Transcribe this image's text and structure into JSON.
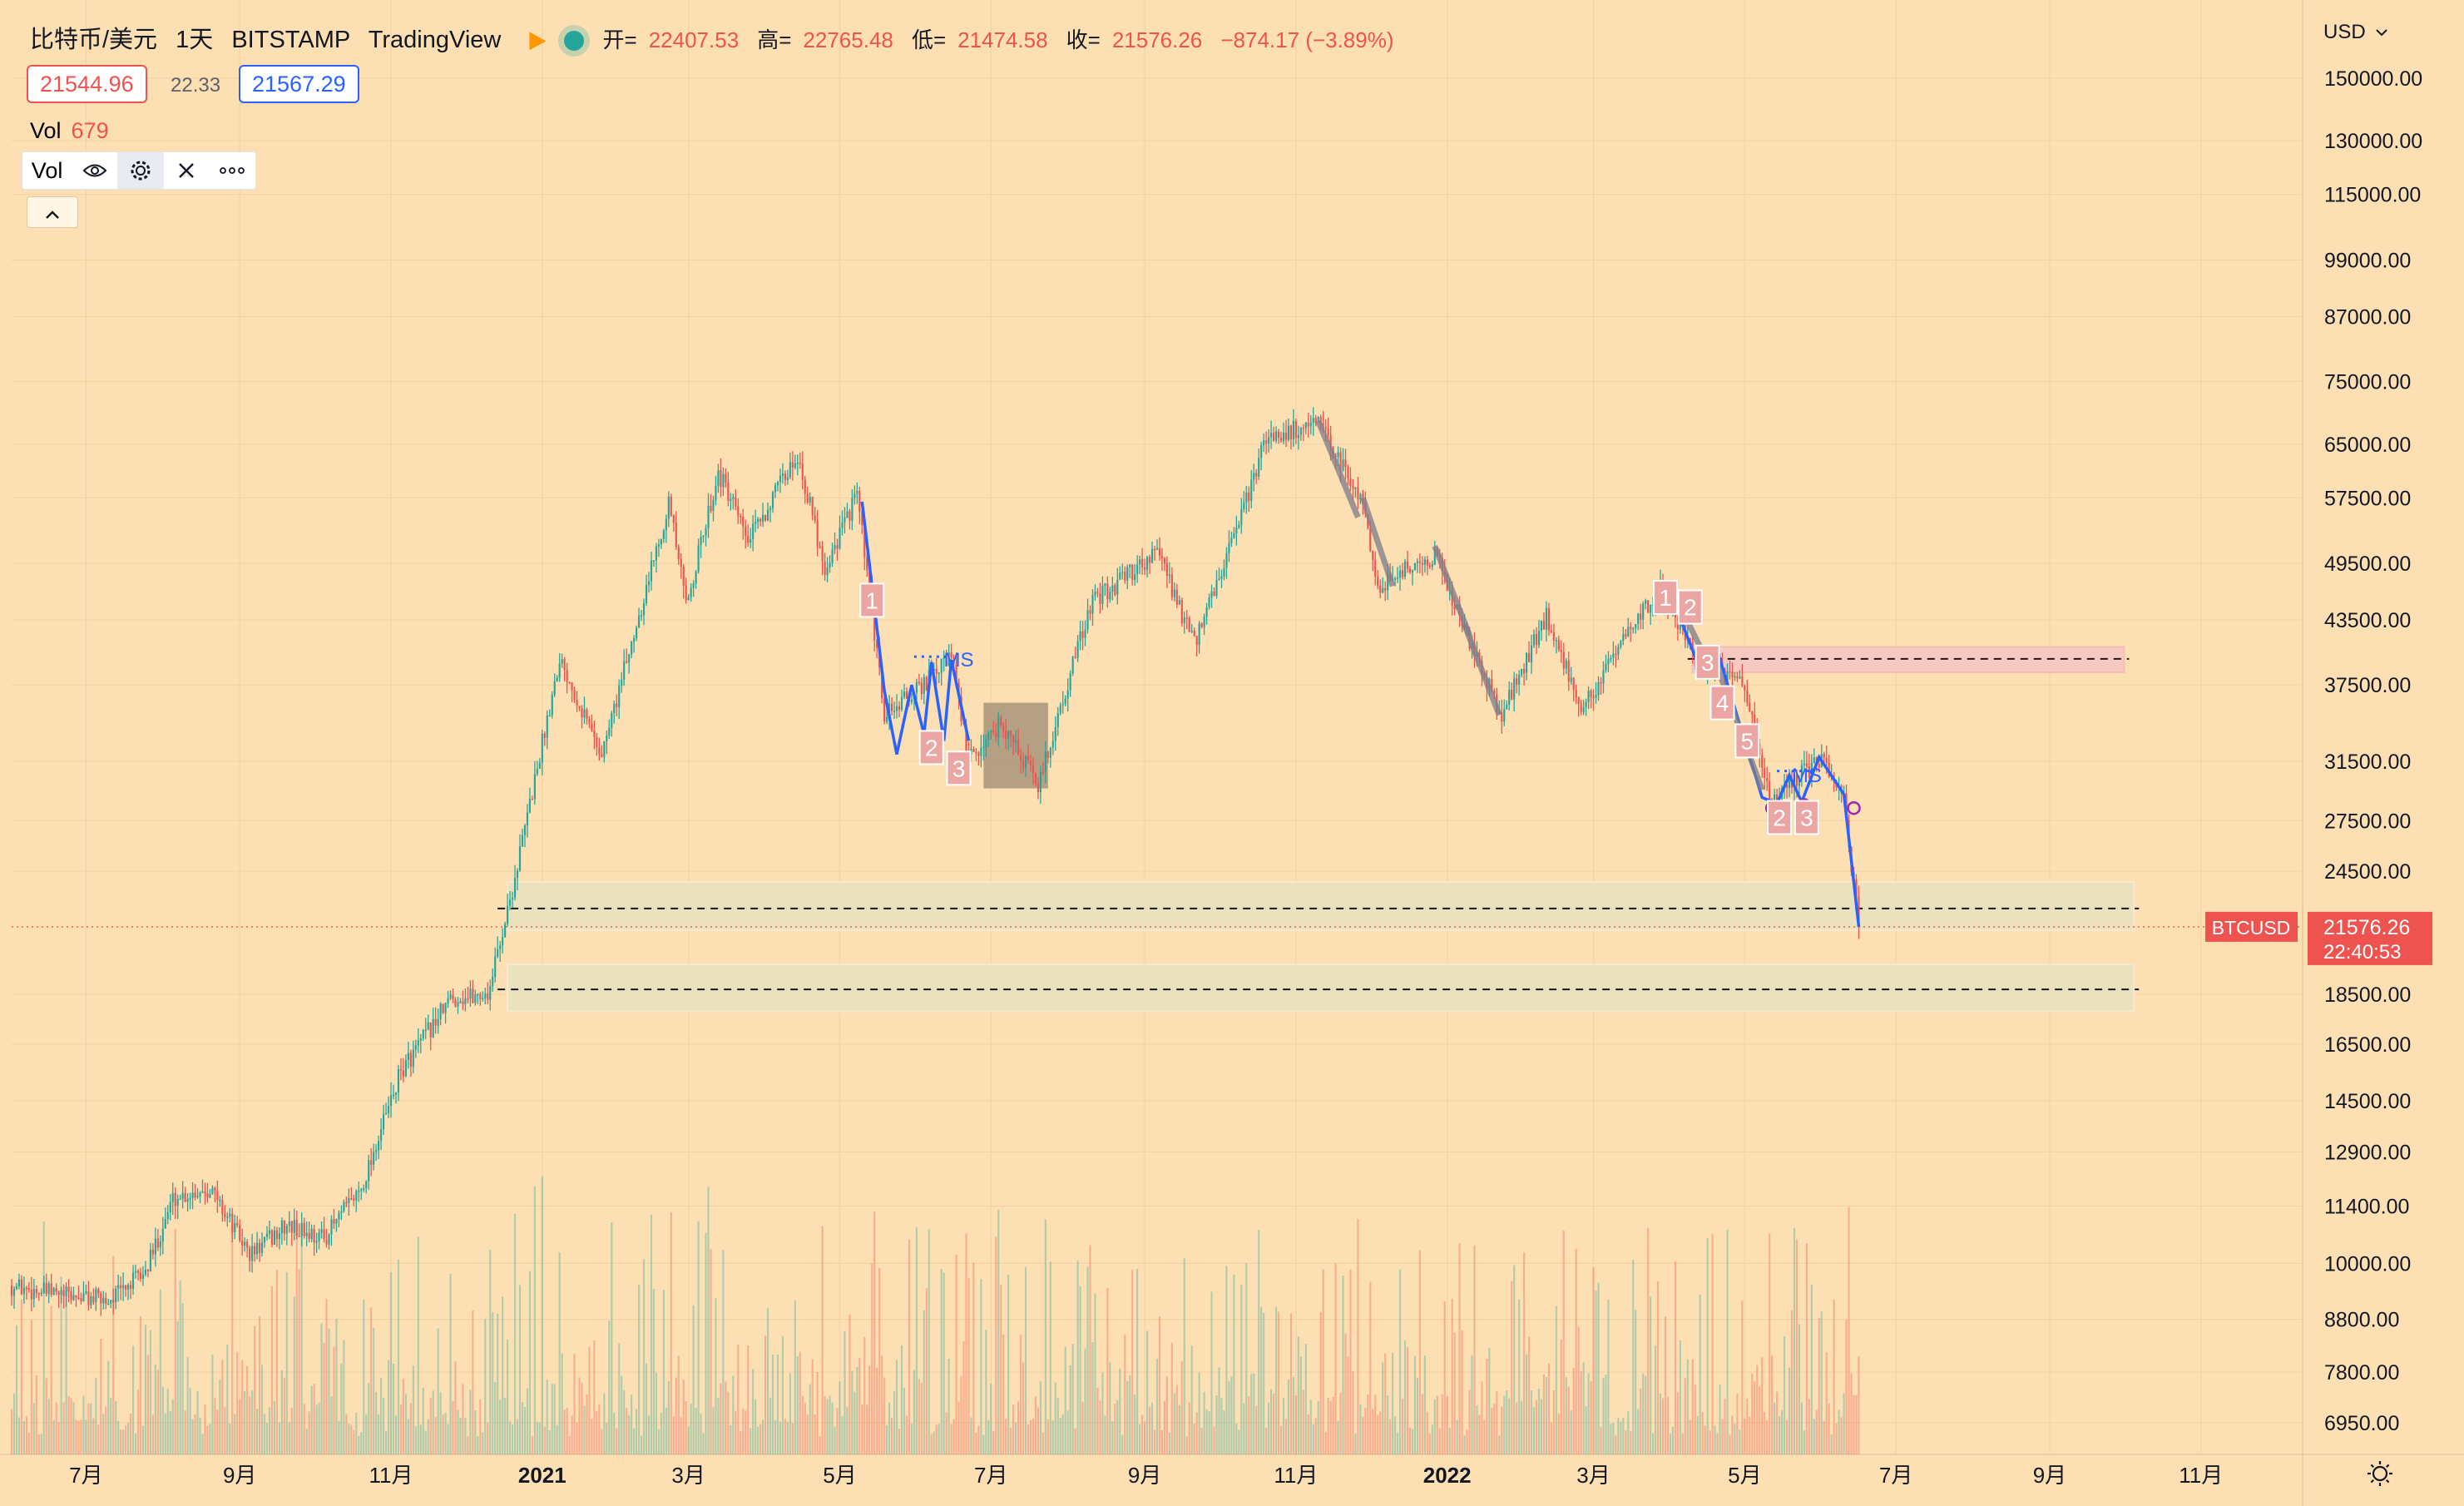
{
  "header": {
    "symbol": "比特币/美元",
    "interval": "1天",
    "exchange": "BITSTAMP",
    "provider": "TradingView",
    "ohlc": {
      "open_label": "开=",
      "open": "22407.53",
      "high_label": "高=",
      "high": "22765.48",
      "low_label": "低=",
      "low": "21474.58",
      "close_label": "收=",
      "close": "21576.26",
      "change": "−874.17 (−3.89%)"
    },
    "bid": "21544.96",
    "spread": "22.33",
    "ask": "21567.29"
  },
  "volume_pane": {
    "label": "Vol",
    "value": "679",
    "toolbar_label": "Vol"
  },
  "currency_selector": "USD",
  "price_tag": {
    "symbol": "BTCUSD",
    "price": "21576.26",
    "countdown": "22:40:53"
  },
  "colors": {
    "background": "#fddfb4",
    "up": "#26a69a",
    "down": "#ef5350",
    "drawing_blue": "#2962ff",
    "zone_fill": "#e9e2bf",
    "pink_zone": "#f7c6c3"
  },
  "icons": [
    "eye-icon",
    "gear-icon",
    "close-icon",
    "more-icon",
    "chevron-up-icon",
    "chevron-down-icon",
    "settings-sun-icon",
    "flag-icon",
    "live-dot-icon"
  ],
  "chart_data": {
    "type": "candlestick",
    "title": "比特币/美元",
    "ylabel": "USD",
    "yscale": "log",
    "ylim": [
      6500,
      160000
    ],
    "y_ticks": [
      "150000.00",
      "130000.00",
      "115000.00",
      "99000.00",
      "87000.00",
      "75000.00",
      "65000.00",
      "57500.00",
      "49500.00",
      "43500.00",
      "37500.00",
      "31500.00",
      "27500.00",
      "24500.00",
      "18500.00",
      "16500.00",
      "14500.00",
      "12900.00",
      "11400.00",
      "10000.00",
      "8800.00",
      "7800.00",
      "6950.00"
    ],
    "x_ticks": [
      "7月",
      "9月",
      "11月",
      "2021",
      "3月",
      "5月",
      "7月",
      "9月",
      "11月",
      "2022",
      "3月",
      "5月",
      "7月",
      "9月",
      "11月"
    ],
    "x_range": [
      "2020-06-01",
      "2022-12-10"
    ],
    "grid": true,
    "price_path": [
      [
        "2020-06-01",
        9500
      ],
      [
        "2020-06-20",
        9300
      ],
      [
        "2020-07-10",
        9200
      ],
      [
        "2020-07-25",
        9800
      ],
      [
        "2020-08-05",
        11600
      ],
      [
        "2020-08-20",
        11900
      ],
      [
        "2020-09-05",
        10200
      ],
      [
        "2020-09-20",
        10900
      ],
      [
        "2020-10-05",
        10600
      ],
      [
        "2020-10-20",
        11900
      ],
      [
        "2020-11-05",
        15500
      ],
      [
        "2020-11-25",
        18300
      ],
      [
        "2020-12-10",
        18500
      ],
      [
        "2020-12-20",
        23500
      ],
      [
        "2021-01-08",
        40000
      ],
      [
        "2021-01-25",
        32000
      ],
      [
        "2021-02-10",
        45000
      ],
      [
        "2021-02-21",
        57000
      ],
      [
        "2021-02-28",
        45000
      ],
      [
        "2021-03-13",
        61000
      ],
      [
        "2021-03-25",
        52000
      ],
      [
        "2021-04-14",
        63500
      ],
      [
        "2021-04-25",
        49000
      ],
      [
        "2021-05-08",
        58000
      ],
      [
        "2021-05-19",
        35000
      ],
      [
        "2021-06-01",
        37000
      ],
      [
        "2021-06-15",
        40000
      ],
      [
        "2021-06-22",
        31500
      ],
      [
        "2021-07-05",
        34500
      ],
      [
        "2021-07-20",
        29800
      ],
      [
        "2021-08-10",
        45000
      ],
      [
        "2021-09-06",
        51000
      ],
      [
        "2021-09-21",
        41000
      ],
      [
        "2021-10-10",
        55000
      ],
      [
        "2021-10-20",
        66000
      ],
      [
        "2021-11-10",
        68000
      ],
      [
        "2021-11-28",
        57000
      ],
      [
        "2021-12-04",
        47000
      ],
      [
        "2021-12-27",
        50500
      ],
      [
        "2022-01-10",
        41500
      ],
      [
        "2022-01-23",
        35000
      ],
      [
        "2022-02-10",
        44000
      ],
      [
        "2022-02-24",
        35500
      ],
      [
        "2022-03-28",
        47000
      ],
      [
        "2022-04-11",
        40000
      ],
      [
        "2022-04-30",
        37500
      ],
      [
        "2022-05-12",
        28700
      ],
      [
        "2022-05-31",
        31700
      ],
      [
        "2022-06-10",
        29000
      ],
      [
        "2022-06-16",
        21576
      ]
    ],
    "horizontal_levels": [
      {
        "price": 22500,
        "zone": [
          21400,
          23900
        ]
      },
      {
        "price": 18700,
        "zone": [
          17800,
          19800
        ]
      },
      {
        "price": 39800,
        "zone": [
          38600,
          40900
        ],
        "color": "pink"
      }
    ],
    "count_labels": [
      {
        "text": "1",
        "date": "2021-05-14",
        "price": 45500
      },
      {
        "text": "2",
        "date": "2021-06-07",
        "price": 32500
      },
      {
        "text": "3",
        "date": "2021-06-18",
        "price": 31000
      },
      {
        "text": "MS",
        "date": "2021-06-18",
        "price": 39700
      },
      {
        "text": "1",
        "date": "2022-03-30",
        "price": 45800
      },
      {
        "text": "2",
        "date": "2022-04-09",
        "price": 44800
      },
      {
        "text": "3",
        "date": "2022-04-16",
        "price": 39500
      },
      {
        "text": "4",
        "date": "2022-04-22",
        "price": 36000
      },
      {
        "text": "5",
        "date": "2022-05-02",
        "price": 33000
      },
      {
        "text": "2",
        "date": "2022-05-15",
        "price": 27700
      },
      {
        "text": "3",
        "date": "2022-05-26",
        "price": 27700
      },
      {
        "text": "MS",
        "date": "2022-05-26",
        "price": 30500
      }
    ],
    "volume_max": 150000
  },
  "footer": {
    "settings_label": ""
  }
}
